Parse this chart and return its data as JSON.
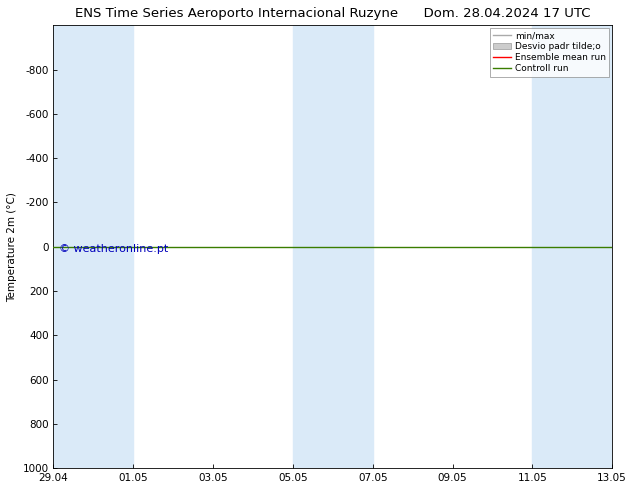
{
  "title_left": "ENS Time Series Aeroporto Internacional Ruzyne",
  "title_right": "Dom. 28.04.2024 17 UTC",
  "ylabel": "Temperature 2m (°C)",
  "watermark": "© weatheronline.pt",
  "ylim_bottom": 1000,
  "ylim_top": -1000,
  "yticks": [
    -800,
    -600,
    -400,
    -200,
    0,
    200,
    400,
    600,
    800,
    1000
  ],
  "xtick_labels": [
    "29.04",
    "01.05",
    "03.05",
    "05.05",
    "07.05",
    "09.05",
    "11.05",
    "13.05"
  ],
  "xtick_positions": [
    0,
    2,
    4,
    6,
    8,
    10,
    12,
    14
  ],
  "xlim_min": 0,
  "xlim_max": 14,
  "shaded_regions": [
    {
      "start": 0,
      "end": 2
    },
    {
      "start": 6,
      "end": 8
    },
    {
      "start": 12,
      "end": 14
    }
  ],
  "shaded_color": "#daeaf8",
  "background_color": "#ffffff",
  "plot_bg_color": "#ffffff",
  "green_line_y": 0,
  "green_line_color": "#3a7d00",
  "red_line_color": "#ff0000",
  "legend_labels": [
    "min/max",
    "Desvio padr tilde;o",
    "Ensemble mean run",
    "Controll run"
  ],
  "legend_line_colors": [
    "#aaaaaa",
    "#cccccc",
    "#ff0000",
    "#3a7d00"
  ],
  "tick_color": "#000000",
  "axes_color": "#000000",
  "font_size": 7.5,
  "title_font_size": 9.5,
  "watermark_color": "#0000bb",
  "watermark_fontsize": 8
}
